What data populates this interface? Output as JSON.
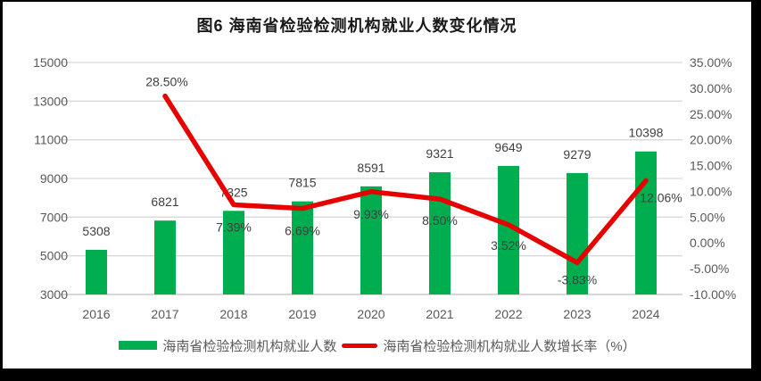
{
  "page": {
    "frame_color": "#000000",
    "background": "#FFFFFF"
  },
  "colors": {
    "bar": "#00AE50",
    "line": "#E60000",
    "grid": "#D9D9D9",
    "baseline": "#BFBFBF",
    "axis_text": "#595959",
    "data_label": "#3F3F3F"
  },
  "chart_data": {
    "type": "bar",
    "combo": "bar + line, dual axis",
    "title": "图6  海南省检验检测机构就业人数变化情况",
    "categories": [
      "2016",
      "2017",
      "2018",
      "2019",
      "2020",
      "2021",
      "2022",
      "2023",
      "2024"
    ],
    "series": [
      {
        "name": "海南省检验检测机构就业人数",
        "type": "bar",
        "axis": "left",
        "color": "#00AE50",
        "values": [
          5308,
          6821,
          7325,
          7815,
          8591,
          9321,
          9649,
          9279,
          10398
        ],
        "labels": [
          "5308",
          "6821",
          "7325",
          "7815",
          "8591",
          "9321",
          "9649",
          "9279",
          "10398"
        ]
      },
      {
        "name": "海南省检验检测机构就业人数增长率（%）",
        "type": "line",
        "axis": "right",
        "color": "#E60000",
        "values": [
          null,
          28.5,
          7.39,
          6.69,
          9.93,
          8.5,
          3.52,
          -3.83,
          12.06
        ],
        "labels": [
          "",
          "28.50%",
          "7.39%",
          "6.69%",
          "9.93%",
          "8.50%",
          "3.52%",
          "-3.83%",
          "12.06%"
        ]
      }
    ],
    "left_axis": {
      "min": 3000,
      "max": 15000,
      "ticks": [
        "15000",
        "13000",
        "11000",
        "9000",
        "7000",
        "5000",
        "3000"
      ]
    },
    "right_axis": {
      "min": -10,
      "max": 35,
      "ticks": [
        "35.00%",
        "30.00%",
        "25.00%",
        "20.00%",
        "15.00%",
        "10.00%",
        "5.00%",
        "0.00%",
        "-5.00%",
        "-10.00%"
      ]
    },
    "grid": true,
    "legend_position": "bottom"
  }
}
